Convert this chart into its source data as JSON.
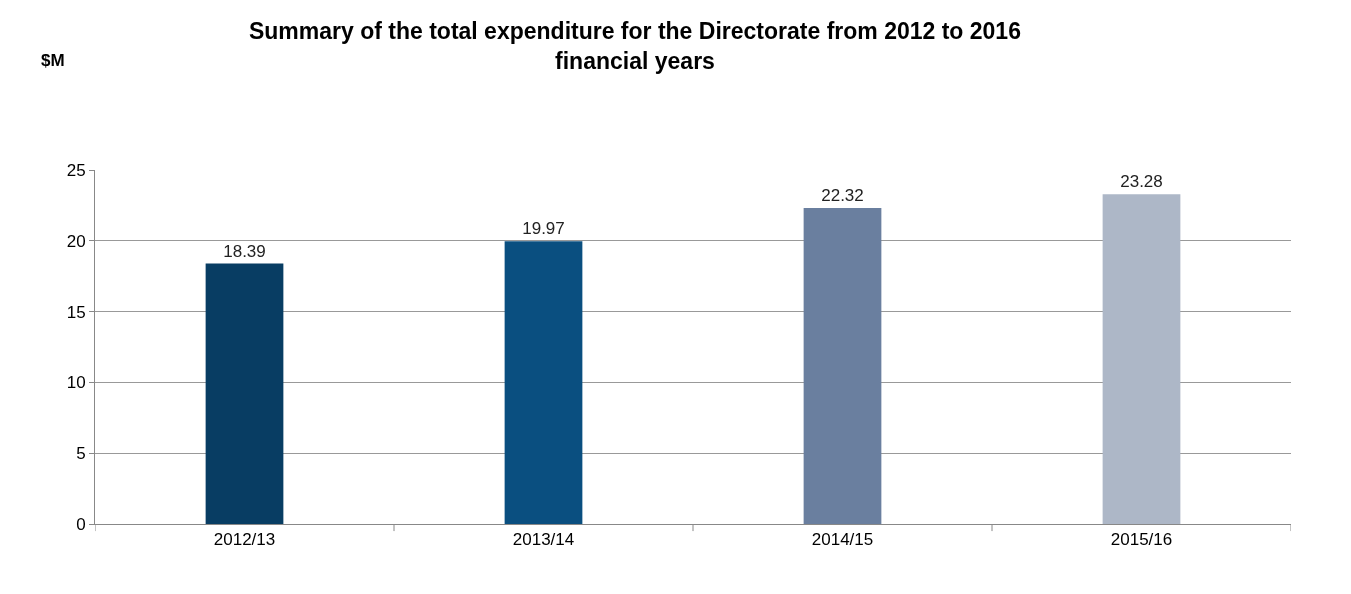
{
  "chart_data": {
    "type": "bar",
    "title": "Summary of the total expenditure for the Directorate from 2012 to 2016 financial years",
    "annotations": [
      "$M"
    ],
    "categories": [
      "2012/13",
      "2013/14",
      "2014/15",
      "2015/16"
    ],
    "values": [
      18.39,
      19.97,
      22.32,
      23.28
    ],
    "colors": [
      "#083d63",
      "#0a4f80",
      "#6a7f9f",
      "#adb7c7"
    ],
    "ylim": [
      0,
      25
    ],
    "yticks": [
      0,
      5,
      10,
      15,
      20,
      25
    ],
    "grid": "y",
    "data_labels": true
  }
}
